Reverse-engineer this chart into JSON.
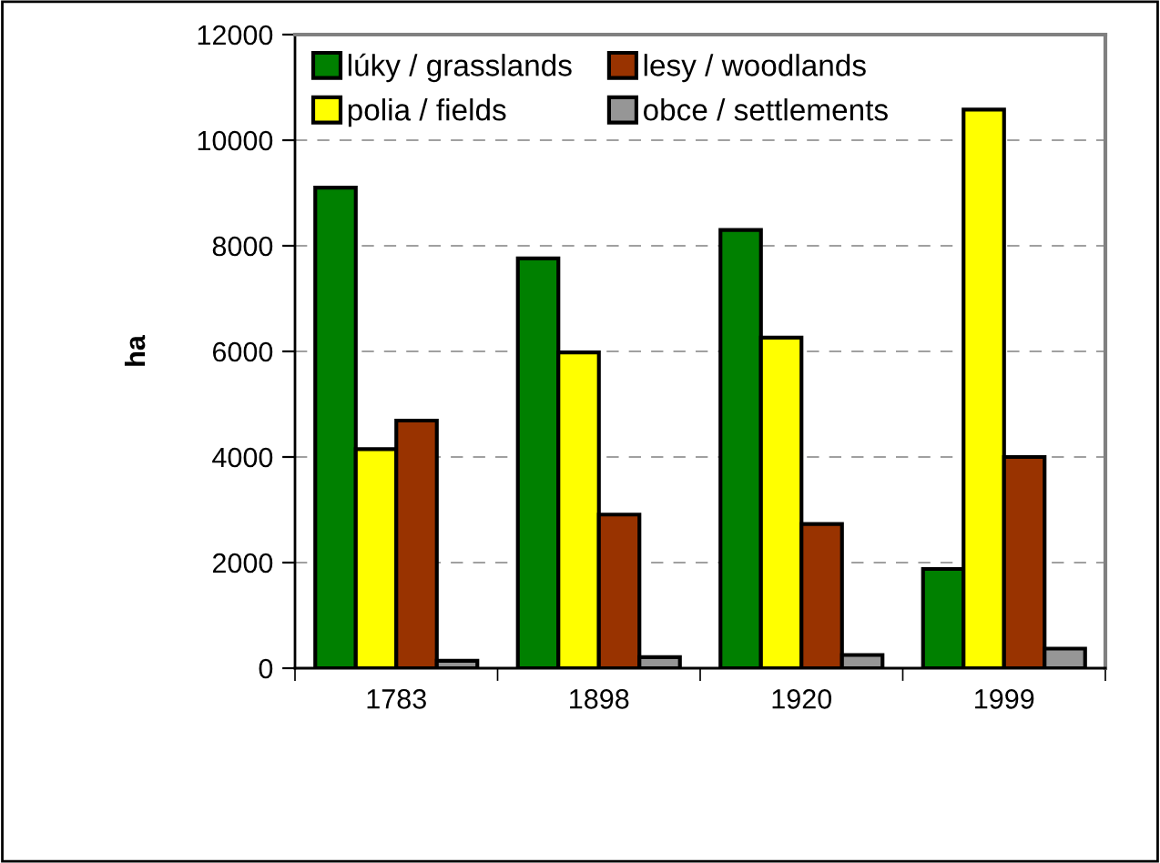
{
  "chart_data": {
    "type": "bar",
    "ylabel": "ha",
    "categories": [
      "1783",
      "1898",
      "1920",
      "1999"
    ],
    "series": [
      {
        "name": "lúky / grasslands",
        "color": "#008000",
        "values": [
          9100,
          7760,
          8300,
          1880
        ]
      },
      {
        "name": "polia / fields",
        "color": "#ffff00",
        "values": [
          4150,
          5980,
          6260,
          10580
        ]
      },
      {
        "name": "lesy / woodlands",
        "color": "#993300",
        "values": [
          4690,
          2910,
          2730,
          4000
        ]
      },
      {
        "name": "obce / settlements",
        "color": "#969696",
        "values": [
          140,
          210,
          250,
          370
        ]
      }
    ],
    "ylim": [
      0,
      12000
    ],
    "yticks": [
      0,
      2000,
      4000,
      6000,
      8000,
      10000,
      12000
    ],
    "grid": "y",
    "legend": "top left"
  }
}
